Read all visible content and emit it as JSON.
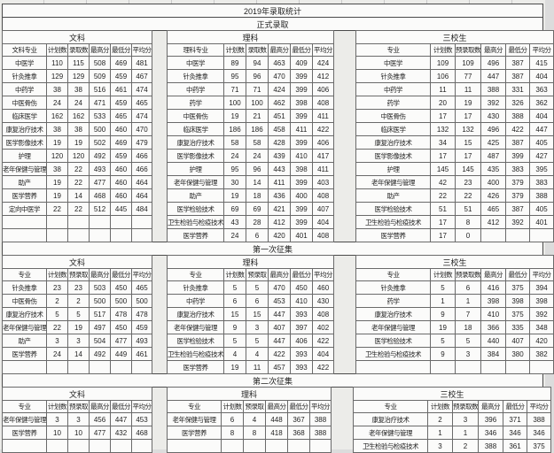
{
  "title": "2019年录取统计",
  "sections": [
    {
      "label": "正式录取",
      "tables": [
        {
          "group": "文科",
          "columns": [
            "文科专业",
            "计划数",
            "录取数",
            "最高分",
            "最低分",
            "平均分"
          ],
          "rows": [
            [
              "中医学",
              110,
              115,
              508,
              469,
              481
            ],
            [
              "针灸推拿",
              129,
              129,
              509,
              459,
              467
            ],
            [
              "中药学",
              38,
              38,
              516,
              461,
              474
            ],
            [
              "中医骨伤",
              24,
              24,
              471,
              459,
              465
            ],
            [
              "临床医学",
              162,
              162,
              533,
              465,
              474
            ],
            [
              "康复治疗技术",
              38,
              38,
              500,
              460,
              470
            ],
            [
              "医学影像技术",
              19,
              19,
              502,
              469,
              479
            ],
            [
              "护理",
              120,
              120,
              492,
              459,
              466
            ],
            [
              "老年保健与管理",
              38,
              22,
              493,
              460,
              466
            ],
            [
              "助产",
              19,
              22,
              477,
              460,
              464
            ],
            [
              "医学营养",
              19,
              14,
              468,
              460,
              464
            ],
            [
              "定向中医学",
              22,
              22,
              512,
              445,
              484
            ]
          ],
          "empty_rows": 2
        },
        {
          "group": "理科",
          "columns": [
            "理科专业",
            "计划数",
            "录取数",
            "最高分",
            "最低分",
            "平均分"
          ],
          "rows": [
            [
              "中医学",
              89,
              94,
              463,
              409,
              424
            ],
            [
              "针灸推拿",
              95,
              96,
              470,
              399,
              412
            ],
            [
              "中药学",
              71,
              71,
              424,
              399,
              406
            ],
            [
              "药学",
              100,
              100,
              462,
              398,
              408
            ],
            [
              "中医骨伤",
              19,
              21,
              451,
              399,
              411
            ],
            [
              "临床医学",
              186,
              186,
              458,
              411,
              422
            ],
            [
              "康复治疗技术",
              58,
              58,
              428,
              399,
              406
            ],
            [
              "医学影像技术",
              24,
              24,
              439,
              410,
              417
            ],
            [
              "护理",
              95,
              96,
              443,
              398,
              411
            ],
            [
              "老年保健与管理",
              30,
              14,
              411,
              399,
              403
            ],
            [
              "助产",
              19,
              18,
              436,
              400,
              408
            ],
            [
              "医学检验技术",
              69,
              69,
              421,
              399,
              407
            ],
            [
              "卫生检验与检疫技术",
              43,
              28,
              412,
              399,
              404
            ],
            [
              "医学营养",
              24,
              6,
              420,
              401,
              408
            ]
          ],
          "empty_rows": 0
        },
        {
          "group": "三校生",
          "columns": [
            "专业",
            "计划数",
            "预录取数",
            "最高分",
            "最低分",
            "平均分"
          ],
          "rows": [
            [
              "中医学",
              109,
              109,
              496,
              387,
              415
            ],
            [
              "针灸推拿",
              106,
              77,
              447,
              387,
              404
            ],
            [
              "中药学",
              11,
              11,
              388,
              331,
              363
            ],
            [
              "药学",
              20,
              19,
              392,
              326,
              362
            ],
            [
              "中医骨伤",
              17,
              17,
              430,
              388,
              404
            ],
            [
              "临床医学",
              132,
              132,
              496,
              422,
              447
            ],
            [
              "康复治疗技术",
              34,
              15,
              425,
              387,
              405
            ],
            [
              "医学影像技术",
              17,
              17,
              487,
              399,
              427
            ],
            [
              "护理",
              145,
              145,
              435,
              383,
              395
            ],
            [
              "老年保健与管理",
              42,
              23,
              400,
              379,
              383
            ],
            [
              "助产",
              22,
              22,
              426,
              379,
              388
            ],
            [
              "医学检验技术",
              51,
              51,
              465,
              387,
              405
            ],
            [
              "卫生检验与检疫技术",
              17,
              8,
              412,
              392,
              401
            ],
            [
              "医学营养",
              17,
              0,
              "",
              "",
              ""
            ]
          ],
          "empty_rows": 0
        }
      ]
    },
    {
      "label": "第一次征集",
      "tables": [
        {
          "group": "文科",
          "columns": [
            "专业",
            "计划数",
            "预录取",
            "最高分",
            "最低分",
            "平均分"
          ],
          "rows": [
            [
              "针灸推拿",
              23,
              23,
              503,
              450,
              465
            ],
            [
              "中医骨伤",
              2,
              2,
              500,
              500,
              500
            ],
            [
              "康复治疗技术",
              5,
              5,
              517,
              478,
              478
            ],
            [
              "老年保健与管理",
              22,
              19,
              497,
              450,
              459
            ],
            [
              "助产",
              3,
              3,
              504,
              477,
              493
            ],
            [
              "医学营养",
              24,
              14,
              492,
              449,
              461
            ]
          ],
          "empty_rows": 1
        },
        {
          "group": "理科",
          "columns": [
            "专业",
            "计划数",
            "预录取",
            "最高分",
            "最低分",
            "平均分"
          ],
          "rows": [
            [
              "针灸推拿",
              5,
              5,
              470,
              450,
              460
            ],
            [
              "中药学",
              6,
              6,
              453,
              410,
              430
            ],
            [
              "康复治疗技术",
              15,
              15,
              447,
              393,
              408
            ],
            [
              "老年保健与管理",
              9,
              3,
              407,
              397,
              402
            ],
            [
              "医学检验技术",
              5,
              5,
              447,
              406,
              422
            ],
            [
              "卫生检验与检疫技术",
              4,
              4,
              422,
              393,
              404
            ],
            [
              "医学营养",
              19,
              11,
              457,
              393,
              422
            ]
          ],
          "empty_rows": 0
        },
        {
          "group": "三校生",
          "columns": [
            "专业",
            "计划数",
            "预录取数",
            "最高分",
            "最低分",
            "平均分"
          ],
          "rows": [
            [
              "针灸推拿",
              5,
              6,
              416,
              375,
              394
            ],
            [
              "药学",
              1,
              1,
              398,
              398,
              398
            ],
            [
              "康复治疗技术",
              9,
              7,
              410,
              375,
              392
            ],
            [
              "老年保健与管理",
              19,
              18,
              366,
              335,
              348
            ],
            [
              "医学检验技术",
              5,
              5,
              440,
              407,
              420
            ],
            [
              "卫生检验与检疫技术",
              9,
              3,
              384,
              380,
              382
            ]
          ],
          "empty_rows": 1
        }
      ]
    },
    {
      "label": "第二次征集",
      "tables": [
        {
          "group": "文科",
          "columns": [
            "专业",
            "计划数",
            "预录取",
            "最高分",
            "最低分",
            "平均分"
          ],
          "rows": [
            [
              "老年保健与管理",
              3,
              3,
              456,
              447,
              453
            ],
            [
              "医学营养",
              10,
              10,
              477,
              432,
              468
            ]
          ],
          "empty_rows": 1
        },
        {
          "group": "理科",
          "columns": [
            "专业",
            "计划数",
            "预录取",
            "最高分",
            "最低分",
            "平均分"
          ],
          "rows": [
            [
              "老年保健与管理",
              6,
              4,
              448,
              367,
              388
            ],
            [
              "医学营养",
              8,
              8,
              418,
              368,
              388
            ]
          ],
          "empty_rows": 1
        },
        {
          "group": "三校生",
          "columns": [
            "专业",
            "计划数",
            "预录取数",
            "最高分",
            "最低分",
            "平均分"
          ],
          "rows": [
            [
              "康复治疗技术",
              2,
              3,
              396,
              371,
              388
            ],
            [
              "老年保健与管理",
              1,
              1,
              346,
              346,
              346
            ],
            [
              "卫生检验与检疫技术",
              3,
              2,
              388,
              361,
              375
            ]
          ],
          "empty_rows": 0
        }
      ]
    }
  ]
}
